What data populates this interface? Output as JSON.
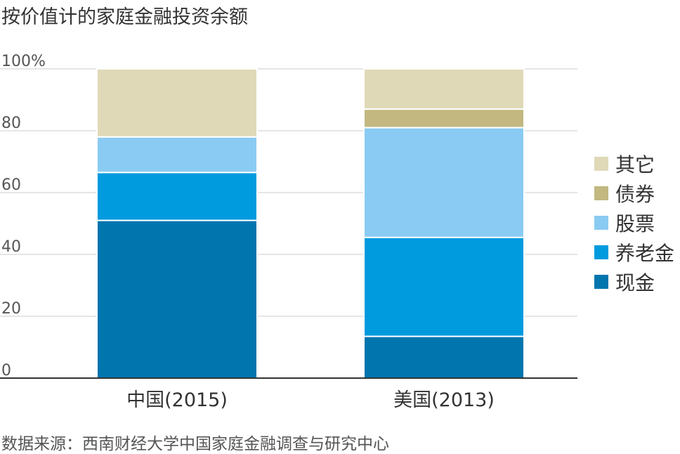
{
  "title": "按价值计的家庭金融投资余额",
  "source": "数据来源：西南财经大学中国家庭金融调查与研究中心",
  "chart_data": {
    "type": "bar",
    "stacked": true,
    "categories": [
      "中国(2015)",
      "美国(2013)"
    ],
    "series": [
      {
        "name": "现金",
        "color": "#0075AE",
        "values": [
          51,
          13.5
        ]
      },
      {
        "name": "养老金",
        "color": "#009BDF",
        "values": [
          15.5,
          32
        ]
      },
      {
        "name": "股票",
        "color": "#8ACBF3",
        "values": [
          11.5,
          35.5
        ]
      },
      {
        "name": "债券",
        "color": "#C2B880",
        "values": [
          0,
          6
        ]
      },
      {
        "name": "其它",
        "color": "#DFD9B8",
        "values": [
          22,
          13
        ]
      }
    ],
    "ylim": [
      0,
      100
    ],
    "yticks": [
      0,
      20,
      40,
      60,
      80,
      100
    ],
    "ytick_labels": [
      "0",
      "20",
      "40",
      "60",
      "80",
      "100%"
    ],
    "grid": true,
    "legend_position": "right"
  }
}
